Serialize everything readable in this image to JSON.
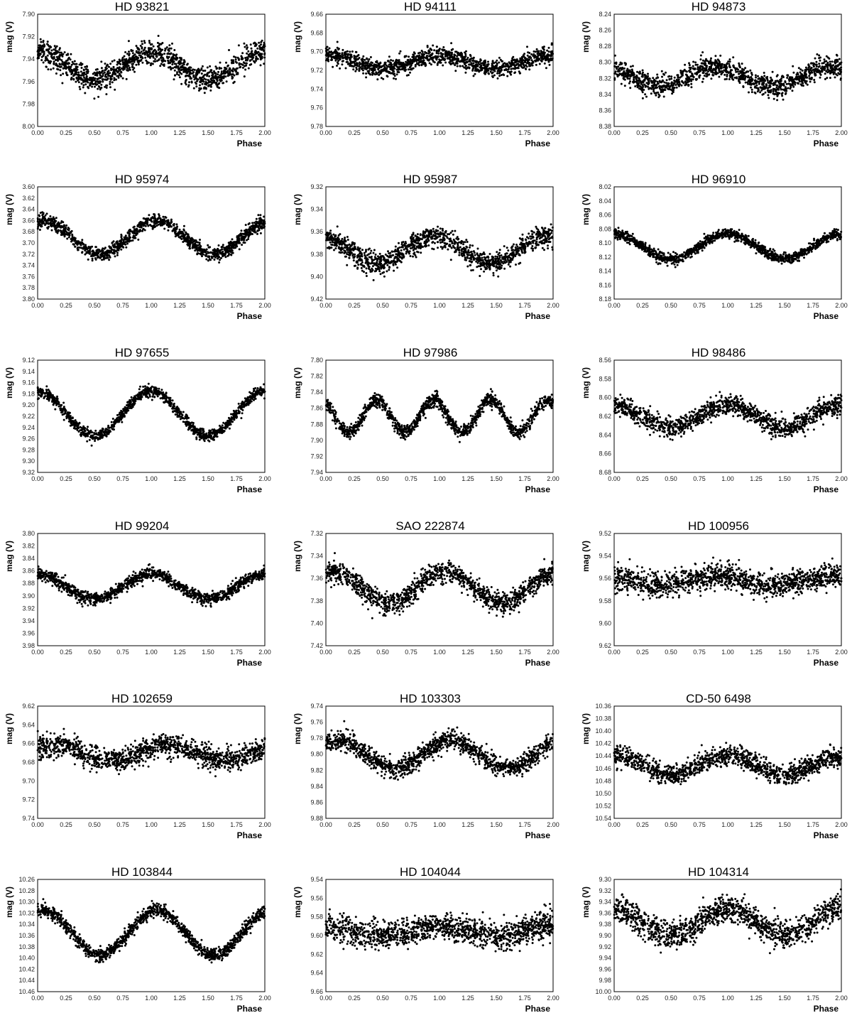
{
  "figure": {
    "xlabel": "Phase",
    "ylabel": "mag (V)"
  },
  "chart_data": [
    {
      "type": "scatter",
      "title": "HD 93821",
      "xlabel": "Phase",
      "ylabel": "mag (V)",
      "xlim": [
        0,
        2
      ],
      "ylim": [
        7.9,
        8.0
      ],
      "yticks": [
        "7.90",
        "7.92",
        "7.94",
        "7.96",
        "7.98",
        "8.00"
      ],
      "xticks": [
        "0.00",
        "0.25",
        "0.50",
        "0.75",
        "1.00",
        "1.25",
        "1.50",
        "1.75",
        "2.00"
      ],
      "series": [
        {
          "shape": "sin",
          "mean": 7.946,
          "amplitude": 0.012,
          "min_phase": 0.5,
          "harmonics": 1,
          "scatter": 0.009
        }
      ]
    },
    {
      "type": "scatter",
      "title": "HD 94111",
      "xlabel": "Phase",
      "ylabel": "mag (V)",
      "xlim": [
        0,
        2
      ],
      "ylim": [
        9.66,
        9.78
      ],
      "yticks": [
        "9.66",
        "9.68",
        "9.70",
        "9.72",
        "9.74",
        "9.76",
        "9.78"
      ],
      "xticks": [
        "0.00",
        "0.25",
        "0.50",
        "0.75",
        "1.00",
        "1.25",
        "1.50",
        "1.75",
        "2.00"
      ],
      "series": [
        {
          "shape": "sin",
          "mean": 9.711,
          "amplitude": 0.007,
          "min_phase": 0.5,
          "harmonics": 1,
          "scatter": 0.008
        }
      ]
    },
    {
      "type": "scatter",
      "title": "HD 94873",
      "xlabel": "Phase",
      "ylabel": "mag (V)",
      "xlim": [
        0,
        2
      ],
      "ylim": [
        8.24,
        8.38
      ],
      "yticks": [
        "8.24",
        "8.26",
        "8.28",
        "8.30",
        "8.32",
        "8.34",
        "8.36",
        "8.38"
      ],
      "xticks": [
        "0.00",
        "0.25",
        "0.50",
        "0.75",
        "1.00",
        "1.25",
        "1.50",
        "1.75",
        "2.00"
      ],
      "series": [
        {
          "shape": "sin",
          "mean": 8.318,
          "amplitude": 0.012,
          "min_phase": 0.4,
          "harmonics": 1,
          "scatter": 0.011
        }
      ]
    },
    {
      "type": "scatter",
      "title": "HD 95974",
      "xlabel": "Phase",
      "ylabel": "mag (V)",
      "xlim": [
        0,
        2
      ],
      "ylim": [
        3.6,
        3.8
      ],
      "yticks": [
        "3.60",
        "3.62",
        "3.64",
        "3.66",
        "3.68",
        "3.70",
        "3.72",
        "3.74",
        "3.76",
        "3.78",
        "3.80"
      ],
      "xticks": [
        "0.00",
        "0.25",
        "0.50",
        "0.75",
        "1.00",
        "1.25",
        "1.50",
        "1.75",
        "2.00"
      ],
      "series": [
        {
          "shape": "sin",
          "mean": 3.69,
          "amplitude": 0.03,
          "min_phase": 0.55,
          "harmonics": 1,
          "scatter": 0.01
        }
      ]
    },
    {
      "type": "scatter",
      "title": "HD 95987",
      "xlabel": "Phase",
      "ylabel": "mag (V)",
      "xlim": [
        0,
        2
      ],
      "ylim": [
        9.32,
        9.42
      ],
      "yticks": [
        "9.32",
        "9.34",
        "9.36",
        "9.38",
        "9.40",
        "9.42"
      ],
      "xticks": [
        "0.00",
        "0.25",
        "0.50",
        "0.75",
        "1.00",
        "1.25",
        "1.50",
        "1.75",
        "2.00"
      ],
      "series": [
        {
          "shape": "sin",
          "mean": 9.376,
          "amplitude": 0.012,
          "min_phase": 0.45,
          "harmonics": 1,
          "scatter": 0.008
        }
      ]
    },
    {
      "type": "scatter",
      "title": "HD 96910",
      "xlabel": "Phase",
      "ylabel": "mag (V)",
      "xlim": [
        0,
        2
      ],
      "ylim": [
        8.02,
        8.18
      ],
      "yticks": [
        "8.02",
        "8.04",
        "8.06",
        "8.08",
        "8.10",
        "8.12",
        "8.14",
        "8.16",
        "8.18"
      ],
      "xticks": [
        "0.00",
        "0.25",
        "0.50",
        "0.75",
        "1.00",
        "1.25",
        "1.50",
        "1.75",
        "2.00"
      ],
      "series": [
        {
          "shape": "sin",
          "mean": 8.105,
          "amplitude": 0.018,
          "min_phase": 0.5,
          "harmonics": 1,
          "scatter": 0.006
        }
      ]
    },
    {
      "type": "scatter",
      "title": "HD 97655",
      "xlabel": "Phase",
      "ylabel": "mag (V)",
      "xlim": [
        0,
        2
      ],
      "ylim": [
        9.12,
        9.32
      ],
      "yticks": [
        "9.12",
        "9.14",
        "9.16",
        "9.18",
        "9.20",
        "9.22",
        "9.24",
        "9.26",
        "9.28",
        "9.30",
        "9.32"
      ],
      "xticks": [
        "0.00",
        "0.25",
        "0.50",
        "0.75",
        "1.00",
        "1.25",
        "1.50",
        "1.75",
        "2.00"
      ],
      "series": [
        {
          "shape": "sin",
          "mean": 9.215,
          "amplitude": 0.04,
          "min_phase": 0.5,
          "harmonics": 1,
          "scatter": 0.008
        }
      ]
    },
    {
      "type": "scatter",
      "title": "HD 97986",
      "xlabel": "Phase",
      "ylabel": "mag (V)",
      "xlim": [
        0,
        2
      ],
      "ylim": [
        7.8,
        7.94
      ],
      "yticks": [
        "7.80",
        "7.82",
        "7.84",
        "7.86",
        "7.88",
        "7.90",
        "7.92",
        "7.94"
      ],
      "xticks": [
        "0.00",
        "0.25",
        "0.50",
        "0.75",
        "1.00",
        "1.25",
        "1.50",
        "1.75",
        "2.00"
      ],
      "series": [
        {
          "shape": "sin",
          "mean": 7.87,
          "amplitude": 0.02,
          "min_phase": 0.7,
          "harmonics": 2,
          "scatter": 0.007
        }
      ]
    },
    {
      "type": "scatter",
      "title": "HD 98486",
      "xlabel": "Phase",
      "ylabel": "mag (V)",
      "xlim": [
        0,
        2
      ],
      "ylim": [
        8.56,
        8.68
      ],
      "yticks": [
        "8.56",
        "8.58",
        "8.60",
        "8.62",
        "8.64",
        "8.66",
        "8.68"
      ],
      "xticks": [
        "0.00",
        "0.25",
        "0.50",
        "0.75",
        "1.00",
        "1.25",
        "1.50",
        "1.75",
        "2.00"
      ],
      "series": [
        {
          "shape": "sin",
          "mean": 8.62,
          "amplitude": 0.012,
          "min_phase": 0.5,
          "harmonics": 1,
          "scatter": 0.009
        }
      ]
    },
    {
      "type": "scatter",
      "title": "HD 99204",
      "xlabel": "Phase",
      "ylabel": "mag (V)",
      "xlim": [
        0,
        2
      ],
      "ylim": [
        3.8,
        3.98
      ],
      "yticks": [
        "3.80",
        "3.82",
        "3.84",
        "3.86",
        "3.88",
        "3.90",
        "3.92",
        "3.94",
        "3.96",
        "3.98"
      ],
      "xticks": [
        "0.00",
        "0.25",
        "0.50",
        "0.75",
        "1.00",
        "1.25",
        "1.50",
        "1.75",
        "2.00"
      ],
      "series": [
        {
          "shape": "sin",
          "mean": 3.885,
          "amplitude": 0.02,
          "min_phase": 0.5,
          "harmonics": 1,
          "scatter": 0.008
        }
      ]
    },
    {
      "type": "scatter",
      "title": "SAO 222874",
      "xlabel": "Phase",
      "ylabel": "mag (V)",
      "xlim": [
        0,
        2
      ],
      "ylim": [
        7.32,
        7.42
      ],
      "yticks": [
        "7.32",
        "7.34",
        "7.36",
        "7.38",
        "7.40",
        "7.42"
      ],
      "xticks": [
        "0.00",
        "0.25",
        "0.50",
        "0.75",
        "1.00",
        "1.25",
        "1.50",
        "1.75",
        "2.00"
      ],
      "series": [
        {
          "shape": "sin",
          "mean": 7.368,
          "amplitude": 0.014,
          "min_phase": 0.55,
          "harmonics": 1,
          "scatter": 0.008
        }
      ]
    },
    {
      "type": "scatter",
      "title": "HD 100956",
      "xlabel": "Phase",
      "ylabel": "mag (V)",
      "xlim": [
        0,
        2
      ],
      "ylim": [
        9.52,
        9.62
      ],
      "yticks": [
        "9.52",
        "9.54",
        "9.56",
        "9.58",
        "9.60",
        "9.62"
      ],
      "xticks": [
        "0.00",
        "0.25",
        "0.50",
        "0.75",
        "1.00",
        "1.25",
        "1.50",
        "1.75",
        "2.00"
      ],
      "series": [
        {
          "shape": "sin",
          "mean": 9.562,
          "amplitude": 0.004,
          "min_phase": 0.4,
          "harmonics": 1,
          "scatter": 0.009
        }
      ]
    },
    {
      "type": "scatter",
      "title": "HD 102659",
      "xlabel": "Phase",
      "ylabel": "mag (V)",
      "xlim": [
        0,
        2
      ],
      "ylim": [
        9.62,
        9.74
      ],
      "yticks": [
        "9.62",
        "9.64",
        "9.66",
        "9.68",
        "9.70",
        "9.72",
        "9.74"
      ],
      "xticks": [
        "0.00",
        "0.25",
        "0.50",
        "0.75",
        "1.00",
        "1.25",
        "1.50",
        "1.75",
        "2.00"
      ],
      "series": [
        {
          "shape": "sin",
          "mean": 9.67,
          "amplitude": 0.008,
          "min_phase": 0.65,
          "harmonics": 1,
          "scatter": 0.01
        }
      ]
    },
    {
      "type": "scatter",
      "title": "HD 103303",
      "xlabel": "Phase",
      "ylabel": "mag (V)",
      "xlim": [
        0,
        2
      ],
      "ylim": [
        9.74,
        9.88
      ],
      "yticks": [
        "9.74",
        "9.76",
        "9.78",
        "9.80",
        "9.82",
        "9.84",
        "9.86",
        "9.88"
      ],
      "xticks": [
        "0.00",
        "0.25",
        "0.50",
        "0.75",
        "1.00",
        "1.25",
        "1.50",
        "1.75",
        "2.00"
      ],
      "series": [
        {
          "shape": "sin",
          "mean": 9.8,
          "amplitude": 0.018,
          "min_phase": 0.6,
          "harmonics": 1,
          "scatter": 0.01
        }
      ]
    },
    {
      "type": "scatter",
      "title": "CD-50 6498",
      "xlabel": "Phase",
      "ylabel": "mag (V)",
      "xlim": [
        0,
        2
      ],
      "ylim": [
        10.36,
        10.54
      ],
      "yticks": [
        "10.36",
        "10.38",
        "10.40",
        "10.42",
        "10.44",
        "10.46",
        "10.48",
        "10.50",
        "10.52",
        "10.54"
      ],
      "xticks": [
        "0.00",
        "0.25",
        "0.50",
        "0.75",
        "1.00",
        "1.25",
        "1.50",
        "1.75",
        "2.00"
      ],
      "series": [
        {
          "shape": "sin",
          "mean": 10.455,
          "amplitude": 0.015,
          "min_phase": 0.5,
          "harmonics": 1,
          "scatter": 0.013
        }
      ]
    },
    {
      "type": "scatter",
      "title": "HD 103844",
      "xlabel": "Phase",
      "ylabel": "mag (V)",
      "xlim": [
        0,
        2
      ],
      "ylim": [
        10.26,
        10.46
      ],
      "yticks": [
        "10.26",
        "10.28",
        "10.30",
        "10.32",
        "10.34",
        "10.36",
        "10.38",
        "10.40",
        "10.42",
        "10.44",
        "10.46"
      ],
      "xticks": [
        "0.00",
        "0.25",
        "0.50",
        "0.75",
        "1.00",
        "1.25",
        "1.50",
        "1.75",
        "2.00"
      ],
      "series": [
        {
          "shape": "sin",
          "mean": 10.355,
          "amplitude": 0.04,
          "min_phase": 0.55,
          "harmonics": 1,
          "scatter": 0.01
        }
      ]
    },
    {
      "type": "scatter",
      "title": "HD 104044",
      "xlabel": "Phase",
      "ylabel": "mag (V)",
      "xlim": [
        0,
        2
      ],
      "ylim": [
        9.54,
        9.66
      ],
      "yticks": [
        "9.54",
        "9.56",
        "9.58",
        "9.60",
        "9.62",
        "9.64",
        "9.66"
      ],
      "xticks": [
        "0.00",
        "0.25",
        "0.50",
        "0.75",
        "1.00",
        "1.25",
        "1.50",
        "1.75",
        "2.00"
      ],
      "series": [
        {
          "shape": "sin",
          "mean": 9.595,
          "amplitude": 0.005,
          "min_phase": 0.5,
          "harmonics": 1,
          "scatter": 0.012
        }
      ]
    },
    {
      "type": "scatter",
      "title": "HD 104314",
      "xlabel": "Phase",
      "ylabel": "mag (V)",
      "xlim": [
        0,
        2
      ],
      "ylim": [
        9.3,
        10.0
      ],
      "yticks": [
        "9.30",
        "9.32",
        "9.34",
        "9.36",
        "9.38",
        "9.90",
        "9.92",
        "9.94",
        "9.96",
        "9.98",
        "10.00"
      ],
      "xticks": [
        "0.00",
        "0.25",
        "0.50",
        "0.75",
        "1.00",
        "1.25",
        "1.50",
        "1.75",
        "2.00"
      ],
      "series": [
        {
          "shape": "sin",
          "mean": 0.38,
          "amplitude": 0.12,
          "min_phase": 0.5,
          "harmonics": 1,
          "scatter": 0.1,
          "normalized": true
        }
      ]
    }
  ]
}
